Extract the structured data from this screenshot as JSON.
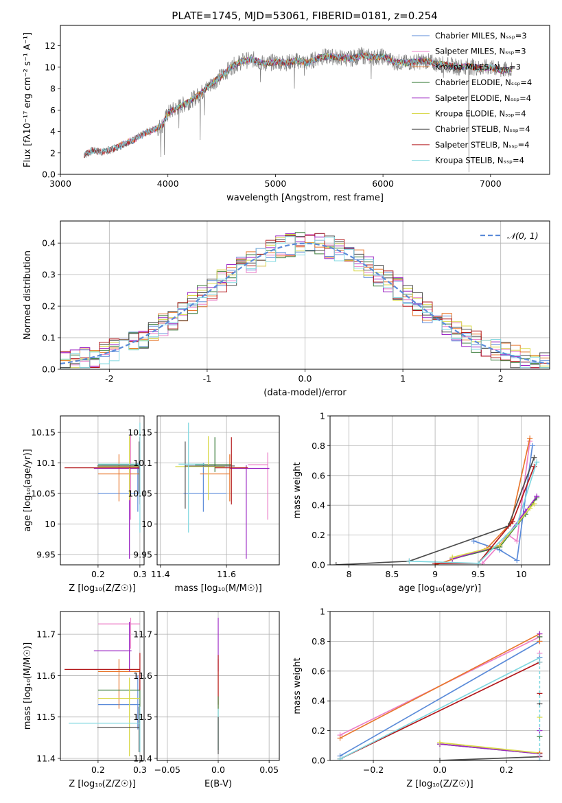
{
  "figure": {
    "title": "PLATE=1745, MJD=53061, FIBERID=0181, z=0.254"
  },
  "colors": {
    "Chabrier MILES": "#5b8bd9",
    "Salpeter MILES": "#ec7fc8",
    "Kroupa MILES": "#e8772d",
    "Chabrier ELODIE": "#3f7f3f",
    "Salpeter ELODIE": "#9c27c4",
    "Kroupa ELODIE": "#d9d94a",
    "Chabrier STELIB": "#4d4d4d",
    "Salpeter STELIB": "#b3181b",
    "Kroupa STELIB": "#80d8e0",
    "gaussian": "#5b8bd9",
    "data": "#808080",
    "grid": "#b0b0b0"
  },
  "chart_data": [
    {
      "id": "spectrum",
      "type": "line",
      "title": "PLATE=1745, MJD=53061, FIBERID=0181, z=0.254",
      "xlabel": "wavelength [Angstrom, rest frame]",
      "ylabel": "Flux [fλ10⁻¹⁷ erg cm⁻² s⁻¹ A⁻¹]",
      "xlim": [
        3000,
        7550
      ],
      "ylim": [
        0,
        13.9
      ],
      "xticks": [
        3000,
        4000,
        5000,
        6000,
        7000
      ],
      "yticks": [
        0,
        2,
        4,
        6,
        8,
        10,
        12
      ],
      "grid": false,
      "legend_position": "top-right",
      "legend": [
        {
          "model": "Chabrier MILES",
          "label": "Chabrier MILES, Nₛₛₚ=3"
        },
        {
          "model": "Salpeter MILES",
          "label": "Salpeter MILES, Nₛₛₚ=3"
        },
        {
          "model": "Kroupa MILES",
          "label": "Kroupa MILES, Nₛₛₚ=3"
        },
        {
          "model": "Chabrier ELODIE",
          "label": "Chabrier ELODIE, Nₛₛₚ=4"
        },
        {
          "model": "Salpeter ELODIE",
          "label": "Salpeter ELODIE, Nₛₛₚ=4"
        },
        {
          "model": "Kroupa ELODIE",
          "label": "Kroupa ELODIE, Nₛₛₚ=4"
        },
        {
          "model": "Chabrier STELIB",
          "label": "Chabrier STELIB, Nₛₛₚ=4"
        },
        {
          "model": "Salpeter STELIB",
          "label": "Salpeter STELIB, Nₛₛₚ=4"
        },
        {
          "model": "Kroupa STELIB",
          "label": "Kroupa STELIB, Nₛₛₚ=4"
        }
      ],
      "continuum": {
        "x": [
          3220,
          3300,
          3400,
          3500,
          3600,
          3700,
          3800,
          3900,
          3950,
          4000,
          4100,
          4200,
          4300,
          4400,
          4500,
          4600,
          4700,
          4800,
          4900,
          5000,
          5100,
          5200,
          5300,
          5400,
          5500,
          5600,
          5700,
          5800,
          5900,
          6000,
          6100,
          6200,
          6300,
          6400,
          6500,
          6600,
          6700,
          6800,
          6900,
          7000,
          7100,
          7200
        ],
        "y": [
          1.8,
          2.2,
          2.1,
          2.4,
          2.9,
          3.3,
          3.9,
          4.3,
          4.6,
          5.7,
          6.3,
          6.8,
          7.5,
          8.4,
          9.2,
          10.1,
          10.6,
          10.7,
          10.3,
          10.5,
          10.4,
          10.6,
          10.4,
          10.9,
          11.0,
          10.9,
          10.8,
          11.1,
          10.9,
          11.0,
          10.5,
          10.4,
          10.5,
          10.6,
          10.3,
          10.2,
          10.0,
          10.1,
          9.9,
          10.0,
          9.7,
          9.8
        ]
      },
      "model_start_wavelength": {
        "Chabrier MILES": 3530,
        "Salpeter MILES": 3530,
        "Kroupa MILES": 3530,
        "Chabrier ELODIE": 3900,
        "Salpeter ELODIE": 3900,
        "Kroupa ELODIE": 3900,
        "Chabrier STELIB": 3220,
        "Salpeter STELIB": 3220,
        "Kroupa STELIB": 3220
      },
      "absorption_lines": [
        {
          "x": 3934,
          "y": 1.6
        },
        {
          "x": 3968,
          "y": 1.8
        },
        {
          "x": 4102,
          "y": 4.3
        },
        {
          "x": 4300,
          "y": 3.2
        },
        {
          "x": 4340,
          "y": 5.5
        },
        {
          "x": 4861,
          "y": 8.6
        },
        {
          "x": 5175,
          "y": 8.0
        },
        {
          "x": 5270,
          "y": 9.2
        },
        {
          "x": 5890,
          "y": 8.9
        },
        {
          "x": 6563,
          "y": 9.0
        },
        {
          "x": 6800,
          "y": 0.2
        }
      ]
    },
    {
      "id": "residuals",
      "type": "step",
      "xlabel": "(data-model)/error",
      "ylabel": "Normed distribution",
      "xlim": [
        -2.5,
        2.5
      ],
      "ylim": [
        0,
        0.47
      ],
      "xticks": [
        -2,
        -1,
        0,
        1,
        2
      ],
      "yticks": [
        0.0,
        0.1,
        0.2,
        0.3,
        0.4
      ],
      "grid": true,
      "bins": {
        "start": -2.5,
        "width": 0.1,
        "count": 50
      },
      "gaussian": {
        "label": "𝒩(0, 1)",
        "mean": 0,
        "sigma": 1,
        "style": "dashed"
      },
      "legend_position": "top-right"
    },
    {
      "id": "age_vs_Z",
      "type": "errorbar",
      "xlabel": "Z [log₁₀(Z/Z☉)]",
      "ylabel": "age  [log₁₀(age/yr)]",
      "xlim": [
        0.11,
        0.31
      ],
      "ylim": [
        9.933,
        10.177
      ],
      "xticks": [
        0.2,
        0.3
      ],
      "yticks": [
        9.95,
        10.0,
        10.05,
        10.1,
        10.15
      ],
      "grid": true,
      "points": [
        {
          "model": "Chabrier MILES",
          "x": 0.295,
          "y": 10.05,
          "xerr": [
            0.095,
            0.005
          ],
          "yerr": [
            0.03,
            0.05
          ]
        },
        {
          "model": "Salpeter MILES",
          "x": 0.278,
          "y": 10.097,
          "xerr": [
            0.07,
            0.02
          ],
          "yerr": [
            0.09,
            0.05
          ]
        },
        {
          "model": "Kroupa MILES",
          "x": 0.25,
          "y": 10.082,
          "xerr": [
            0.05,
            0.05
          ],
          "yerr": [
            0.045,
            0.032
          ]
        },
        {
          "model": "Chabrier ELODIE",
          "x": 0.3,
          "y": 10.097,
          "xerr": [
            0.1,
            0.0
          ],
          "yerr": [
            0.012,
            0.045
          ]
        },
        {
          "model": "Salpeter ELODIE",
          "x": 0.275,
          "y": 10.091,
          "xerr": [
            0.085,
            0.025
          ],
          "yerr": [
            0.148,
            0.005
          ]
        },
        {
          "model": "Kroupa ELODIE",
          "x": 0.275,
          "y": 10.094,
          "xerr": [
            0.075,
            0.025
          ],
          "yerr": [
            0.055,
            0.05
          ]
        },
        {
          "model": "Chabrier STELIB",
          "x": 0.298,
          "y": 10.095,
          "xerr": [
            0.1,
            0.002
          ],
          "yerr": [
            0.045,
            0.04
          ]
        },
        {
          "model": "Salpeter STELIB",
          "x": 0.3,
          "y": 10.092,
          "xerr": [
            0.18,
            0.0
          ],
          "yerr": [
            0.06,
            0.05
          ]
        },
        {
          "model": "Kroupa STELIB",
          "x": 0.3,
          "y": 10.098,
          "xerr": [
            0.1,
            0.0
          ],
          "yerr": [
            0.112,
            0.068
          ]
        }
      ]
    },
    {
      "id": "age_vs_mass",
      "type": "errorbar",
      "xlabel": "mass [log₁₀(M/M☉)]",
      "ylabel": "",
      "xlim": [
        11.39,
        11.76
      ],
      "ylim": [
        9.933,
        10.177
      ],
      "xticks": [
        11.4,
        11.6
      ],
      "yticks": [
        9.95,
        10.0,
        10.05,
        10.1,
        10.15
      ],
      "grid": true,
      "points": [
        {
          "model": "Chabrier MILES",
          "x": 11.53,
          "y": 10.05,
          "xerr": [
            0.06,
            0.07
          ],
          "yerr": [
            0.03,
            0.05
          ]
        },
        {
          "model": "Salpeter MILES",
          "x": 11.725,
          "y": 10.097,
          "xerr": [
            0.06,
            0.0
          ],
          "yerr": [
            0.09,
            0.02
          ]
        },
        {
          "model": "Kroupa MILES",
          "x": 11.61,
          "y": 10.082,
          "xerr": [
            0.09,
            0.0
          ],
          "yerr": [
            0.045,
            0.032
          ]
        },
        {
          "model": "Chabrier ELODIE",
          "x": 11.565,
          "y": 10.097,
          "xerr": [
            0.06,
            0.05
          ],
          "yerr": [
            0.012,
            0.045
          ]
        },
        {
          "model": "Salpeter ELODIE",
          "x": 11.66,
          "y": 10.091,
          "xerr": [
            0.05,
            0.07
          ],
          "yerr": [
            0.148,
            0.005
          ]
        },
        {
          "model": "Kroupa ELODIE",
          "x": 11.545,
          "y": 10.094,
          "xerr": [
            0.1,
            0.05
          ],
          "yerr": [
            0.055,
            0.05
          ]
        },
        {
          "model": "Chabrier STELIB",
          "x": 11.475,
          "y": 10.095,
          "xerr": [
            0.0,
            0.15
          ],
          "yerr": [
            0.07,
            0.04
          ]
        },
        {
          "model": "Salpeter STELIB",
          "x": 11.615,
          "y": 10.092,
          "xerr": [
            0.05,
            0.05
          ],
          "yerr": [
            0.06,
            0.05
          ]
        },
        {
          "model": "Kroupa STELIB",
          "x": 11.485,
          "y": 10.098,
          "xerr": [
            0.03,
            0.05
          ],
          "yerr": [
            0.112,
            0.068
          ]
        }
      ]
    },
    {
      "id": "weight_vs_age",
      "type": "line",
      "xlabel": "age  [log₁₀(age/yr)]",
      "ylabel": "mass weight",
      "xlim": [
        7.78,
        10.33
      ],
      "ylim": [
        0,
        1.0
      ],
      "xticks": [
        8.0,
        8.5,
        9.0,
        9.5,
        10.0
      ],
      "yticks": [
        0.0,
        0.2,
        0.4,
        0.6,
        0.8,
        1.0
      ],
      "grid": true,
      "series": [
        {
          "model": "Chabrier MILES",
          "x": [
            9.45,
            9.75,
            9.95,
            10.13
          ],
          "y": [
            0.16,
            0.1,
            0.03,
            0.8
          ]
        },
        {
          "model": "Salpeter MILES",
          "x": [
            9.55,
            9.85,
            9.95,
            10.1
          ],
          "y": [
            0.01,
            0.2,
            0.16,
            0.83
          ]
        },
        {
          "model": "Kroupa MILES",
          "x": [
            9.0,
            9.6,
            9.88,
            10.1
          ],
          "y": [
            0.0,
            0.11,
            0.28,
            0.85
          ]
        },
        {
          "model": "Chabrier ELODIE",
          "x": [
            9.2,
            9.75,
            10.05,
            10.18
          ],
          "y": [
            0.04,
            0.12,
            0.34,
            0.45
          ]
        },
        {
          "model": "Salpeter ELODIE",
          "x": [
            9.2,
            9.75,
            10.05,
            10.18
          ],
          "y": [
            0.04,
            0.13,
            0.36,
            0.46
          ]
        },
        {
          "model": "Kroupa ELODIE",
          "x": [
            9.2,
            9.75,
            10.1,
            10.15
          ],
          "y": [
            0.05,
            0.13,
            0.38,
            0.41
          ]
        },
        {
          "model": "Chabrier STELIB",
          "x": [
            7.85,
            8.7,
            9.85,
            10.15
          ],
          "y": [
            0.0,
            0.025,
            0.26,
            0.72
          ]
        },
        {
          "model": "Salpeter STELIB",
          "x": [
            9.0,
            9.5,
            9.9,
            10.15
          ],
          "y": [
            0.01,
            0.01,
            0.29,
            0.66
          ]
        },
        {
          "model": "Kroupa STELIB",
          "x": [
            8.7,
            9.5,
            9.95,
            10.18
          ],
          "y": [
            0.025,
            0.01,
            0.27,
            0.69
          ]
        }
      ]
    },
    {
      "id": "mass_vs_Z",
      "type": "errorbar",
      "xlabel": "Z [log₁₀(Z/Z☉)]",
      "ylabel": "mass [log₁₀(M/M☉)]",
      "xlim": [
        0.11,
        0.31
      ],
      "ylim": [
        11.395,
        11.755
      ],
      "xticks": [
        0.2,
        0.3
      ],
      "yticks": [
        11.4,
        11.5,
        11.6,
        11.7
      ],
      "grid": true,
      "points": [
        {
          "model": "Chabrier MILES",
          "x": 0.295,
          "y": 11.53,
          "xerr": [
            0.095,
            0.005
          ],
          "yerr": [
            0.06,
            0.07
          ]
        },
        {
          "model": "Salpeter MILES",
          "x": 0.278,
          "y": 11.725,
          "xerr": [
            0.078,
            0.022
          ],
          "yerr": [
            0.06,
            0.015
          ]
        },
        {
          "model": "Kroupa MILES",
          "x": 0.25,
          "y": 11.61,
          "xerr": [
            0.05,
            0.05
          ],
          "yerr": [
            0.09,
            0.03
          ]
        },
        {
          "model": "Chabrier ELODIE",
          "x": 0.3,
          "y": 11.565,
          "xerr": [
            0.1,
            0.0
          ],
          "yerr": [
            0.06,
            0.05
          ]
        },
        {
          "model": "Salpeter ELODIE",
          "x": 0.275,
          "y": 11.66,
          "xerr": [
            0.085,
            0.005
          ],
          "yerr": [
            0.05,
            0.07
          ]
        },
        {
          "model": "Kroupa ELODIE",
          "x": 0.275,
          "y": 11.545,
          "xerr": [
            0.075,
            0.025
          ],
          "yerr": [
            0.14,
            0.05
          ]
        },
        {
          "model": "Chabrier STELIB",
          "x": 0.298,
          "y": 11.475,
          "xerr": [
            0.1,
            0.002
          ],
          "yerr": [
            0.06,
            0.05
          ]
        },
        {
          "model": "Salpeter STELIB",
          "x": 0.3,
          "y": 11.615,
          "xerr": [
            0.18,
            0.0
          ],
          "yerr": [
            0.05,
            0.04
          ]
        },
        {
          "model": "Kroupa STELIB",
          "x": 0.3,
          "y": 11.485,
          "xerr": [
            0.17,
            0.0
          ],
          "yerr": [
            0.07,
            0.04
          ]
        }
      ]
    },
    {
      "id": "mass_vs_EBV",
      "type": "errorbar",
      "xlabel": "E(B-V)",
      "ylabel": "",
      "xlim": [
        -0.06,
        0.06
      ],
      "ylim": [
        11.395,
        11.755
      ],
      "xticks": [
        -0.05,
        0.0,
        0.05
      ],
      "yticks": [
        11.4,
        11.5,
        11.6,
        11.7
      ],
      "grid": true,
      "points": [
        {
          "model": "Salpeter ELODIE",
          "x": 0.0,
          "y": 11.66,
          "xerr": [
            0.0,
            0.0
          ],
          "yerr": [
            0.05,
            0.08
          ]
        },
        {
          "model": "Kroupa MILES",
          "x": 0.0,
          "y": 11.61,
          "xerr": [
            0.0,
            0.0
          ],
          "yerr": [
            0.09,
            0.03
          ]
        },
        {
          "model": "Salpeter STELIB",
          "x": 0.0,
          "y": 11.59,
          "xerr": [
            0.0,
            0.0
          ],
          "yerr": [
            0.06,
            0.06
          ]
        },
        {
          "model": "Chabrier ELODIE",
          "x": 0.0,
          "y": 11.5,
          "xerr": [
            0.0,
            0.0
          ],
          "yerr": [
            0.08,
            0.05
          ]
        },
        {
          "model": "Kroupa STELIB",
          "x": 0.0,
          "y": 11.47,
          "xerr": [
            0.0,
            0.0
          ],
          "yerr": [
            0.05,
            0.05
          ]
        },
        {
          "model": "Chabrier STELIB",
          "x": 0.0,
          "y": 11.45,
          "xerr": [
            0.0,
            0.0
          ],
          "yerr": [
            0.04,
            0.05
          ]
        }
      ]
    },
    {
      "id": "weight_vs_Z",
      "type": "line",
      "xlabel": "Z [log₁₀(Z/Z☉)]",
      "ylabel": "mass weight",
      "xlim": [
        -0.33,
        0.33
      ],
      "ylim": [
        0,
        1.0
      ],
      "xticks": [
        -0.2,
        0.0,
        0.2
      ],
      "yticks": [
        0.0,
        0.2,
        0.4,
        0.6,
        0.8,
        1.0
      ],
      "grid": true,
      "series": [
        {
          "model": "Chabrier MILES",
          "x": [
            -0.3,
            0.3
          ],
          "y": [
            0.03,
            0.8
          ]
        },
        {
          "model": "Salpeter MILES",
          "x": [
            -0.3,
            0.3
          ],
          "y": [
            0.17,
            0.83
          ]
        },
        {
          "model": "Kroupa MILES",
          "x": [
            -0.3,
            0.3
          ],
          "y": [
            0.15,
            0.85
          ]
        },
        {
          "model": "Chabrier ELODIE",
          "x": [
            0.0,
            0.3
          ],
          "y": [
            0.11,
            0.045
          ]
        },
        {
          "model": "Salpeter ELODIE",
          "x": [
            0.0,
            0.3
          ],
          "y": [
            0.11,
            0.045
          ]
        },
        {
          "model": "Kroupa ELODIE",
          "x": [
            0.0,
            0.3
          ],
          "y": [
            0.12,
            0.05
          ]
        },
        {
          "model": "Chabrier STELIB",
          "x": [
            0.0,
            0.3
          ],
          "y": [
            0.0,
            0.025
          ]
        },
        {
          "model": "Salpeter STELIB",
          "x": [
            -0.3,
            0.3
          ],
          "y": [
            0.01,
            0.66
          ]
        },
        {
          "model": "Kroupa STELIB",
          "x": [
            -0.3,
            0.3
          ],
          "y": [
            0.01,
            0.69
          ]
        }
      ],
      "column_markers": {
        "x": 0.3,
        "y": [
          0.0,
          0.03,
          0.05,
          0.16,
          0.2,
          0.29,
          0.38,
          0.45,
          0.66,
          0.69,
          0.72,
          0.8,
          0.83,
          0.85
        ]
      }
    }
  ]
}
